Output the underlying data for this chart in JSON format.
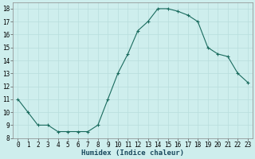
{
  "x": [
    0,
    1,
    2,
    3,
    4,
    5,
    6,
    7,
    8,
    9,
    10,
    11,
    12,
    13,
    14,
    15,
    16,
    17,
    18,
    19,
    20,
    21,
    22,
    23
  ],
  "y": [
    11,
    10,
    9,
    9,
    8.5,
    8.5,
    8.5,
    8.5,
    9,
    11,
    13,
    14.5,
    16.3,
    17,
    18,
    18,
    17.8,
    17.5,
    17,
    15,
    14.5,
    14.3,
    13,
    12.3
  ],
  "line_color": "#1a6b5e",
  "marker": "+",
  "marker_size": 3,
  "xlim": [
    -0.5,
    23.5
  ],
  "ylim": [
    8,
    18.5
  ],
  "yticks": [
    8,
    9,
    10,
    11,
    12,
    13,
    14,
    15,
    16,
    17,
    18
  ],
  "xticks": [
    0,
    1,
    2,
    3,
    4,
    5,
    6,
    7,
    8,
    9,
    10,
    11,
    12,
    13,
    14,
    15,
    16,
    17,
    18,
    19,
    20,
    21,
    22,
    23
  ],
  "xlabel": "Humidex (Indice chaleur)",
  "bg_color": "#ceeeed",
  "grid_color": "#b8dedd",
  "tick_fontsize": 5.5,
  "label_fontsize": 6.5
}
